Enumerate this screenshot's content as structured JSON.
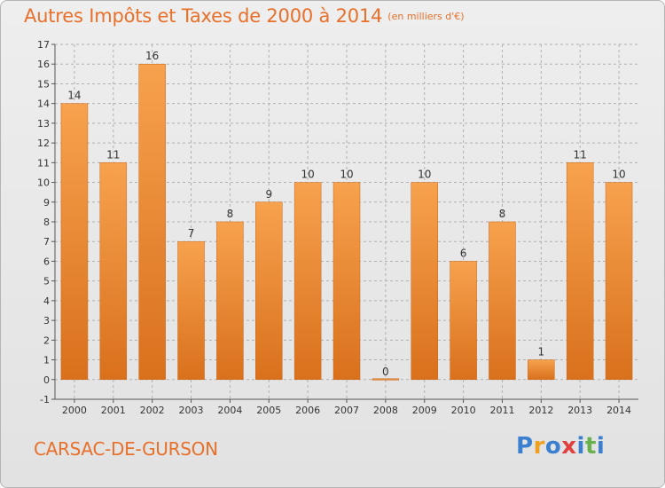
{
  "title": "Autres Impôts et Taxes de 2000 à 2014",
  "subtitle": "(en milliers d'€)",
  "commune": "CARSAC-DE-GURSON",
  "logo": {
    "text": "Proxiti",
    "letters": [
      "P",
      "r",
      "o",
      "x",
      "i",
      "t",
      "i"
    ],
    "colors": [
      "#3a7fd0",
      "#f0a020",
      "#3a7fd0",
      "#e04040",
      "#3a7fd0",
      "#6ab04c",
      "#3a7fd0"
    ]
  },
  "colors": {
    "bar_light": "#f7a24e",
    "bar_dark": "#d9701c",
    "grid": "#b0b0b0",
    "accent": "#e8702a"
  },
  "chart_data": {
    "type": "bar",
    "categories": [
      "2000",
      "2001",
      "2002",
      "2003",
      "2004",
      "2005",
      "2006",
      "2007",
      "2008",
      "2009",
      "2010",
      "2011",
      "2012",
      "2013",
      "2014"
    ],
    "values": [
      14,
      11,
      16,
      7,
      8,
      9,
      10,
      10,
      0,
      10,
      6,
      8,
      1,
      11,
      10
    ],
    "ylim": [
      -1,
      17
    ],
    "yticks": [
      -1,
      0,
      1,
      2,
      3,
      4,
      5,
      6,
      7,
      8,
      9,
      10,
      11,
      12,
      13,
      14,
      15,
      16,
      17
    ],
    "grid": true,
    "xlabel": "",
    "ylabel": ""
  }
}
